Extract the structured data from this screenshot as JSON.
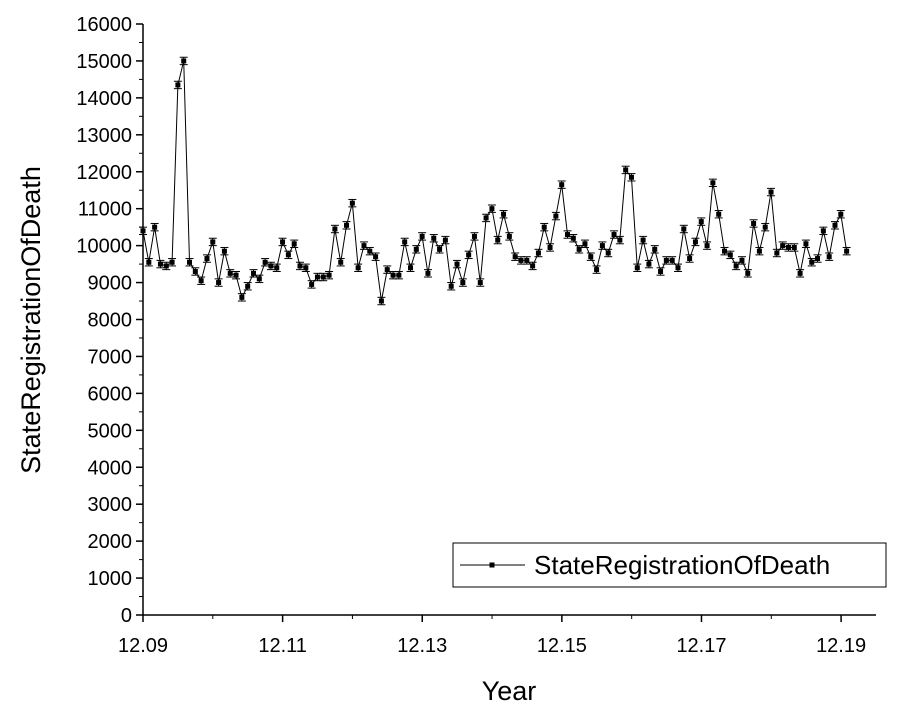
{
  "chart_data": {
    "type": "line",
    "title": "",
    "xlabel": "Year",
    "ylabel": "StateRegistrationOfDeath",
    "xlim": [
      12.09,
      12.195
    ],
    "ylim": [
      0,
      16000
    ],
    "x_ticks": [
      "12.09",
      "12.11",
      "12.13",
      "12.15",
      "12.17",
      "12.19"
    ],
    "y_ticks": [
      "0",
      "1000",
      "2000",
      "3000",
      "4000",
      "5000",
      "6000",
      "7000",
      "8000",
      "9000",
      "10000",
      "11000",
      "12000",
      "13000",
      "14000",
      "15000",
      "16000"
    ],
    "grid": false,
    "legend_position": "bottom-right",
    "error_bars": true,
    "series": [
      {
        "name": "StateRegistrationOfDeath",
        "color": "#000000",
        "marker": "square",
        "x_start": 12.09,
        "x_step": 0.000833,
        "values": [
          10400,
          9550,
          10500,
          9500,
          9450,
          9550,
          14350,
          15000,
          9550,
          9300,
          9050,
          9650,
          10100,
          9000,
          9850,
          9250,
          9200,
          8600,
          8900,
          9250,
          9100,
          9550,
          9450,
          9400,
          10100,
          9750,
          10050,
          9450,
          9400,
          8950,
          9150,
          9150,
          9200,
          10450,
          9550,
          10550,
          11150,
          9400,
          10000,
          9850,
          9700,
          8500,
          9350,
          9200,
          9200,
          10100,
          9400,
          9900,
          10250,
          9250,
          10200,
          9900,
          10150,
          8900,
          9500,
          9000,
          9750,
          10250,
          9000,
          10750,
          11000,
          10150,
          10850,
          10250,
          9700,
          9600,
          9600,
          9450,
          9800,
          10500,
          9950,
          10800,
          11650,
          10300,
          10200,
          9900,
          10050,
          9700,
          9350,
          10000,
          9800,
          10300,
          10150,
          12050,
          11850,
          9400,
          10150,
          9500,
          9900,
          9300,
          9600,
          9600,
          9400,
          10450,
          9650,
          10100,
          10650,
          10000,
          11700,
          10850,
          9850,
          9750,
          9450,
          9600,
          9250,
          10600,
          9850,
          10500,
          11450,
          9800,
          10000,
          9950,
          9950,
          9250,
          10050,
          9550,
          9650,
          10400,
          9700,
          10550,
          10850,
          9850
        ]
      }
    ]
  }
}
